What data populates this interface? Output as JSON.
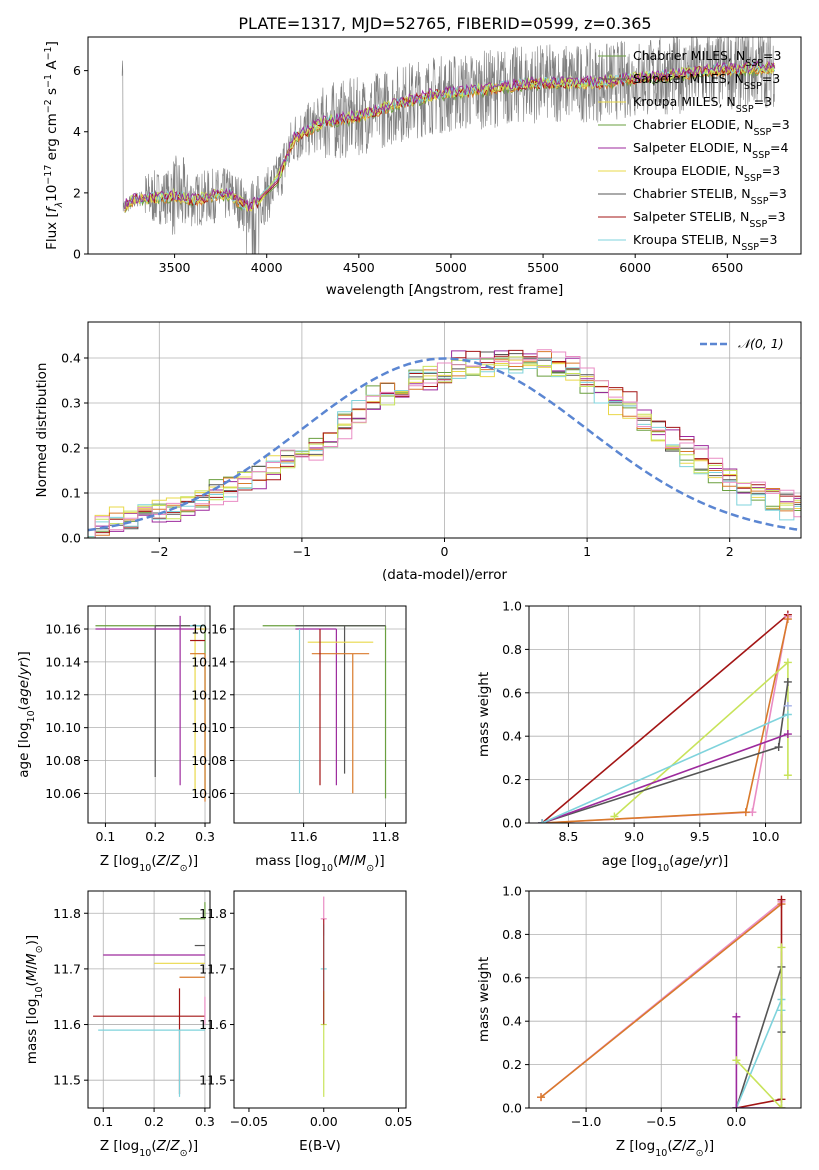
{
  "figure": {
    "title": "PLATE=1317, MJD=52765, FIBERID=0599, z=0.365"
  },
  "colors": {
    "data": "#808080",
    "models": [
      "#6a9f3f",
      "#555555",
      "#9d2a9d",
      "#e9d84a",
      "#d97a2b",
      "#a31515",
      "#7fd3dc",
      "#e98cc4",
      "#a4b0e8",
      "#c8e35a"
    ],
    "normal": "#5b86d2"
  },
  "legend": {
    "models": [
      {
        "base": "Chabrier MILES, N",
        "sub": "SSP",
        "tail": "=3",
        "color": "#6a9f3f"
      },
      {
        "base": "Salpeter MILES, N",
        "sub": "SSP",
        "tail": "=3",
        "color": "#555555"
      },
      {
        "base": "Kroupa MILES, N",
        "sub": "SSP",
        "tail": "=3",
        "color": "#e9d84a"
      },
      {
        "base": "Chabrier ELODIE, N",
        "sub": "SSP",
        "tail": "=3",
        "color": "#6a9f3f"
      },
      {
        "base": "Salpeter ELODIE, N",
        "sub": "SSP",
        "tail": "=4",
        "color": "#9d2a9d"
      },
      {
        "base": "Kroupa ELODIE, N",
        "sub": "SSP",
        "tail": "=3",
        "color": "#e9d84a"
      },
      {
        "base": "Chabrier STELIB, N",
        "sub": "SSP",
        "tail": "=3",
        "color": "#555555"
      },
      {
        "base": "Salpeter STELIB, N",
        "sub": "SSP",
        "tail": "=3",
        "color": "#a31515"
      },
      {
        "base": "Kroupa STELIB, N",
        "sub": "SSP",
        "tail": "=3",
        "color": "#7fd3dc"
      }
    ],
    "normal_label": "𝒩(0, 1)"
  },
  "chart_data": [
    {
      "type": "line",
      "xlabel": "wavelength [Angstrom, rest frame]",
      "ylabel_parts": [
        "Flux [",
        "f",
        "λ",
        "10",
        "−17",
        " erg cm",
        "−2",
        " s",
        "−1",
        " A",
        "−1",
        "]"
      ],
      "xlim": [
        3030,
        6900
      ],
      "ylim": [
        0,
        7.1
      ],
      "xticks": [
        "3500",
        "4000",
        "4500",
        "5000",
        "5500",
        "6000",
        "6500"
      ],
      "yticks": [
        "0",
        "2",
        "4",
        "6"
      ],
      "xtick_values": [
        3500,
        4000,
        4500,
        5000,
        5500,
        6000,
        6500
      ],
      "ytick_values": [
        0,
        2,
        4,
        6
      ],
      "continuum": [
        [
          3220,
          1.55
        ],
        [
          3300,
          1.8
        ],
        [
          3400,
          1.85
        ],
        [
          3500,
          1.9
        ],
        [
          3600,
          1.75
        ],
        [
          3700,
          1.9
        ],
        [
          3800,
          1.95
        ],
        [
          3900,
          1.5
        ],
        [
          4000,
          1.9
        ],
        [
          4050,
          2.3
        ],
        [
          4150,
          3.8
        ],
        [
          4300,
          4.3
        ],
        [
          4500,
          4.5
        ],
        [
          4700,
          4.9
        ],
        [
          4900,
          5.2
        ],
        [
          5000,
          5.25
        ],
        [
          5200,
          5.4
        ],
        [
          5400,
          5.55
        ],
        [
          5600,
          5.6
        ],
        [
          5800,
          5.6
        ],
        [
          6000,
          5.75
        ],
        [
          6200,
          5.85
        ],
        [
          6400,
          6.0
        ],
        [
          6600,
          6.05
        ],
        [
          6760,
          6.1
        ]
      ]
    },
    {
      "type": "bar",
      "xlabel": "(data-model)/error",
      "ylabel": "Normed distribution",
      "xlim": [
        -2.5,
        2.5
      ],
      "ylim": [
        0,
        0.48
      ],
      "xticks": [
        "−2",
        "−1",
        "0",
        "1",
        "2"
      ],
      "yticks": [
        "0.0",
        "0.1",
        "0.2",
        "0.3",
        "0.4"
      ],
      "xtick_values": [
        -2,
        -1,
        0,
        1,
        2
      ],
      "ytick_values": [
        0,
        0.1,
        0.2,
        0.3,
        0.4
      ],
      "bin_width": 0.1,
      "base_hist": [
        0.022,
        0.03,
        0.04,
        0.045,
        0.05,
        0.055,
        0.065,
        0.075,
        0.085,
        0.1,
        0.11,
        0.125,
        0.14,
        0.16,
        0.18,
        0.19,
        0.2,
        0.22,
        0.25,
        0.28,
        0.31,
        0.32,
        0.33,
        0.35,
        0.36,
        0.37,
        0.38,
        0.385,
        0.39,
        0.4,
        0.4,
        0.395,
        0.39,
        0.38,
        0.37,
        0.35,
        0.33,
        0.31,
        0.29,
        0.26,
        0.24,
        0.21,
        0.19,
        0.17,
        0.15,
        0.13,
        0.11,
        0.1,
        0.085,
        0.075,
        0.06
      ],
      "normal_curve": "gaussian(0,1)"
    },
    {
      "type": "scatter",
      "xlabel": "Z [log10(Z/Z⊙)]",
      "ylabel": "age  [log10(age/yr)]",
      "xlim": [
        0.065,
        0.31
      ],
      "ylim": [
        10.042,
        10.174
      ],
      "xticks": [
        "0.1",
        "0.2",
        "0.3"
      ],
      "yticks": [
        "10.06",
        "10.08",
        "10.10",
        "10.12",
        "10.14",
        "10.16"
      ],
      "xtick_values": [
        0.1,
        0.2,
        0.3
      ],
      "ytick_values": [
        10.06,
        10.08,
        10.1,
        10.12,
        10.14,
        10.16
      ],
      "points": [
        {
          "x": 0.3,
          "y": 10.162,
          "xerr": [
            0.22,
            0.0
          ],
          "yerr": [
            0.1,
            0.0
          ]
        },
        {
          "x": 0.2,
          "y": 10.162,
          "xerr": [
            0.0,
            0.1
          ],
          "yerr": [
            0.092,
            0.0
          ]
        },
        {
          "x": 0.25,
          "y": 10.16,
          "xerr": [
            0.17,
            0.05
          ],
          "yerr": [
            0.095,
            0.008
          ]
        },
        {
          "x": 0.28,
          "y": 10.16,
          "xerr": [
            0.0,
            0.02
          ],
          "yerr": [
            0.1,
            0.0
          ]
        },
        {
          "x": 0.3,
          "y": 10.145,
          "xerr": [
            0.03,
            0.0
          ],
          "yerr": [
            0.09,
            0.0
          ]
        },
        {
          "x": 0.29,
          "y": 10.153,
          "xerr": [
            0.02,
            0.01
          ],
          "yerr": [
            0.0,
            0.0
          ]
        },
        {
          "x": 0.27,
          "y": 10.162,
          "xerr": [
            0.0,
            0.03
          ],
          "yerr": [
            0.0,
            0.0
          ]
        }
      ]
    },
    {
      "type": "scatter",
      "xlabel": "mass [log10(M/M⊙)]",
      "ylabel": "",
      "xlim": [
        11.43,
        11.85
      ],
      "ylim": [
        10.042,
        10.174
      ],
      "xticks": [
        "11.6",
        "11.8"
      ],
      "yticks": [
        "10.06",
        "10.08",
        "10.10",
        "10.12",
        "10.14",
        "10.16"
      ],
      "xtick_values": [
        11.6,
        11.8
      ],
      "ytick_values": [
        10.06,
        10.08,
        10.1,
        10.12,
        10.14,
        10.16
      ],
      "points": [
        {
          "x": 11.8,
          "y": 10.162,
          "xerr": [
            0.3,
            0.0
          ],
          "yerr": [
            0.105,
            0.0
          ]
        },
        {
          "x": 11.7,
          "y": 10.162,
          "xerr": [
            0.12,
            0.1
          ],
          "yerr": [
            0.09,
            0.0
          ]
        },
        {
          "x": 11.68,
          "y": 10.16,
          "xerr": [
            0.1,
            0.0
          ],
          "yerr": [
            0.095,
            0.0
          ]
        },
        {
          "x": 11.74,
          "y": 10.152,
          "xerr": [
            0.13,
            0.03
          ],
          "yerr": [
            0.0,
            0.0
          ]
        },
        {
          "x": 11.72,
          "y": 10.145,
          "xerr": [
            0.1,
            0.04
          ],
          "yerr": [
            0.085,
            0.0
          ]
        },
        {
          "x": 11.64,
          "y": 10.16,
          "xerr": [
            0.0,
            0.0
          ],
          "yerr": [
            0.095,
            0.0
          ]
        },
        {
          "x": 11.59,
          "y": 10.16,
          "xerr": [
            0.0,
            0.0
          ],
          "yerr": [
            0.1,
            0.0
          ]
        }
      ]
    },
    {
      "type": "line",
      "xlabel": "age  [log10(age/yr)]",
      "ylabel": "mass weight",
      "xlim": [
        8.2,
        10.27
      ],
      "ylim": [
        0,
        1.0
      ],
      "xticks": [
        "8.5",
        "9.0",
        "9.5",
        "10.0"
      ],
      "yticks": [
        "0.0",
        "0.2",
        "0.4",
        "0.6",
        "0.8",
        "1.0"
      ],
      "xtick_values": [
        8.5,
        9.0,
        9.5,
        10.0
      ],
      "ytick_values": [
        0,
        0.2,
        0.4,
        0.6,
        0.8,
        1.0
      ],
      "series": [
        {
          "color": "#a31515",
          "x": [
            8.3,
            10.17
          ],
          "y": [
            0.0,
            0.96
          ]
        },
        {
          "color": "#e98cc4",
          "x": [
            8.3,
            9.9,
            10.17
          ],
          "y": [
            0.0,
            0.05,
            0.95
          ]
        },
        {
          "color": "#d97a2b",
          "x": [
            8.3,
            9.85,
            10.17
          ],
          "y": [
            0.0,
            0.05,
            0.94
          ]
        },
        {
          "color": "#c8e35a",
          "x": [
            8.85,
            10.17,
            10.17
          ],
          "y": [
            0.03,
            0.74,
            0.22
          ]
        },
        {
          "color": "#555555",
          "x": [
            8.3,
            10.1,
            10.17
          ],
          "y": [
            0.0,
            0.35,
            0.65
          ]
        },
        {
          "color": "#9d2a9d",
          "x": [
            8.3,
            10.17
          ],
          "y": [
            0.0,
            0.41
          ]
        },
        {
          "color": "#7fd3dc",
          "x": [
            8.3,
            10.17
          ],
          "y": [
            0.0,
            0.5
          ]
        },
        {
          "color": "#a4b0e8",
          "x": [
            10.17
          ],
          "y": [
            0.54
          ]
        }
      ]
    },
    {
      "type": "scatter",
      "xlabel": "Z [log10(Z/Z⊙)]",
      "ylabel": "mass [log10(M/M⊙)]",
      "xlim": [
        0.07,
        0.31
      ],
      "ylim": [
        11.45,
        11.84
      ],
      "xticks": [
        "0.1",
        "0.2",
        "0.3"
      ],
      "yticks": [
        "11.5",
        "11.6",
        "11.7",
        "11.8"
      ],
      "xtick_values": [
        0.1,
        0.2,
        0.3
      ],
      "ytick_values": [
        11.5,
        11.6,
        11.7,
        11.8
      ],
      "points": [
        {
          "x": 0.3,
          "y": 11.79,
          "xerr": [
            0.05,
            0.0
          ],
          "yerr": [
            0.0,
            0.03
          ]
        },
        {
          "x": 0.3,
          "y": 11.742,
          "xerr": [
            0.02,
            0.0
          ],
          "yerr": [
            0.0,
            0.0
          ]
        },
        {
          "x": 0.25,
          "y": 11.725,
          "xerr": [
            0.15,
            0.05
          ],
          "yerr": [
            0.0,
            0.0
          ]
        },
        {
          "x": 0.3,
          "y": 11.71,
          "xerr": [
            0.1,
            0.0
          ],
          "yerr": [
            0.0,
            0.0
          ]
        },
        {
          "x": 0.3,
          "y": 11.685,
          "xerr": [
            0.05,
            0.0
          ],
          "yerr": [
            0.0,
            0.0
          ]
        },
        {
          "x": 0.25,
          "y": 11.615,
          "xerr": [
            0.17,
            0.05
          ],
          "yerr": [
            0.14,
            0.05
          ]
        },
        {
          "x": 0.25,
          "y": 11.59,
          "xerr": [
            0.16,
            0.05
          ],
          "yerr": [
            0.12,
            0.0
          ]
        },
        {
          "x": 0.3,
          "y": 11.6,
          "xerr": [
            0.0,
            0.0
          ],
          "yerr": [
            0.0,
            0.05
          ]
        }
      ]
    },
    {
      "type": "scatter",
      "xlabel": "E(B-V)",
      "ylabel": "",
      "xlim": [
        -0.06,
        0.055
      ],
      "ylim": [
        11.45,
        11.84
      ],
      "xticks": [
        "−0.05",
        "0.00",
        "0.05"
      ],
      "yticks": [
        "11.5",
        "11.6",
        "11.7",
        "11.8"
      ],
      "xtick_values": [
        -0.05,
        0.0,
        0.05
      ],
      "ytick_values": [
        11.5,
        11.6,
        11.7,
        11.8
      ],
      "points": [
        {
          "x": 0.0,
          "y": 11.79,
          "xerr": [
            0.0,
            0.0
          ],
          "yerr": [
            0.03,
            0.04
          ]
        },
        {
          "x": 0.0,
          "y": 11.7,
          "xerr": [
            0.0,
            0.0
          ],
          "yerr": [
            0.1,
            0.08
          ]
        },
        {
          "x": 0.0,
          "y": 11.6,
          "xerr": [
            0.0,
            0.0
          ],
          "yerr": [
            0.13,
            0.06
          ]
        }
      ]
    },
    {
      "type": "line",
      "xlabel": "Z [log10(Z/Z⊙)]",
      "ylabel": "mass weight",
      "xlim": [
        -1.38,
        0.43
      ],
      "ylim": [
        0,
        1.0
      ],
      "xticks": [
        "−1.0",
        "−0.5",
        "0.0"
      ],
      "yticks": [
        "0.0",
        "0.2",
        "0.4",
        "0.6",
        "0.8",
        "1.0"
      ],
      "xtick_values": [
        -1.0,
        -0.5,
        0.0
      ],
      "ytick_values": [
        0,
        0.2,
        0.4,
        0.6,
        0.8,
        1.0
      ],
      "series": [
        {
          "color": "#e98cc4",
          "x": [
            -1.3,
            0.3
          ],
          "y": [
            0.05,
            0.95
          ]
        },
        {
          "color": "#d97a2b",
          "x": [
            -1.3,
            0.3
          ],
          "y": [
            0.05,
            0.94
          ]
        },
        {
          "color": "#a31515",
          "x": [
            0.0,
            0.3,
            0.3
          ],
          "y": [
            0.0,
            0.04,
            0.96
          ]
        },
        {
          "color": "#555555",
          "x": [
            0.0,
            0.3,
            0.3
          ],
          "y": [
            0.0,
            0.65,
            0.35
          ]
        },
        {
          "color": "#7fd3dc",
          "x": [
            0.0,
            0.3,
            0.3
          ],
          "y": [
            0.0,
            0.5,
            0.45
          ]
        },
        {
          "color": "#9d2a9d",
          "x": [
            0.0,
            0.0,
            0.3
          ],
          "y": [
            0.42,
            0.0,
            0.0
          ]
        },
        {
          "color": "#c8e35a",
          "x": [
            0.0,
            0.3,
            0.3
          ],
          "y": [
            0.22,
            0.0,
            0.74
          ]
        }
      ]
    }
  ]
}
